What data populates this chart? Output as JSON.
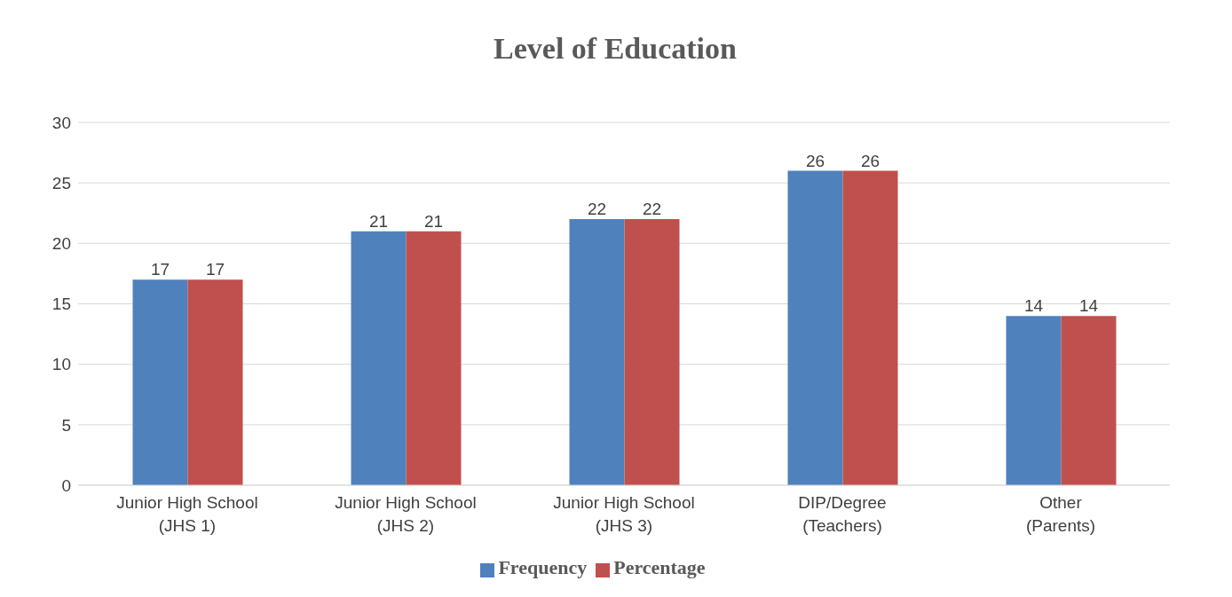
{
  "chart_data": {
    "type": "bar",
    "title": "Level of Education",
    "categories": [
      "Junior High School (JHS 1)",
      "Junior High School (JHS 2)",
      "Junior High School (JHS 3)",
      "DIP/Degree (Teachers)",
      "Other (Parents)"
    ],
    "series": [
      {
        "name": "Frequency",
        "color": "#4f81bd",
        "values": [
          17,
          21,
          22,
          26,
          14
        ]
      },
      {
        "name": "Percentage",
        "color": "#c0504d",
        "values": [
          17,
          21,
          22,
          26,
          14
        ]
      }
    ],
    "ylim": [
      0,
      30
    ],
    "yticks": [
      0,
      5,
      10,
      15,
      20,
      25,
      30
    ],
    "grid": "y",
    "legend": "bottom",
    "data_labels": true
  }
}
